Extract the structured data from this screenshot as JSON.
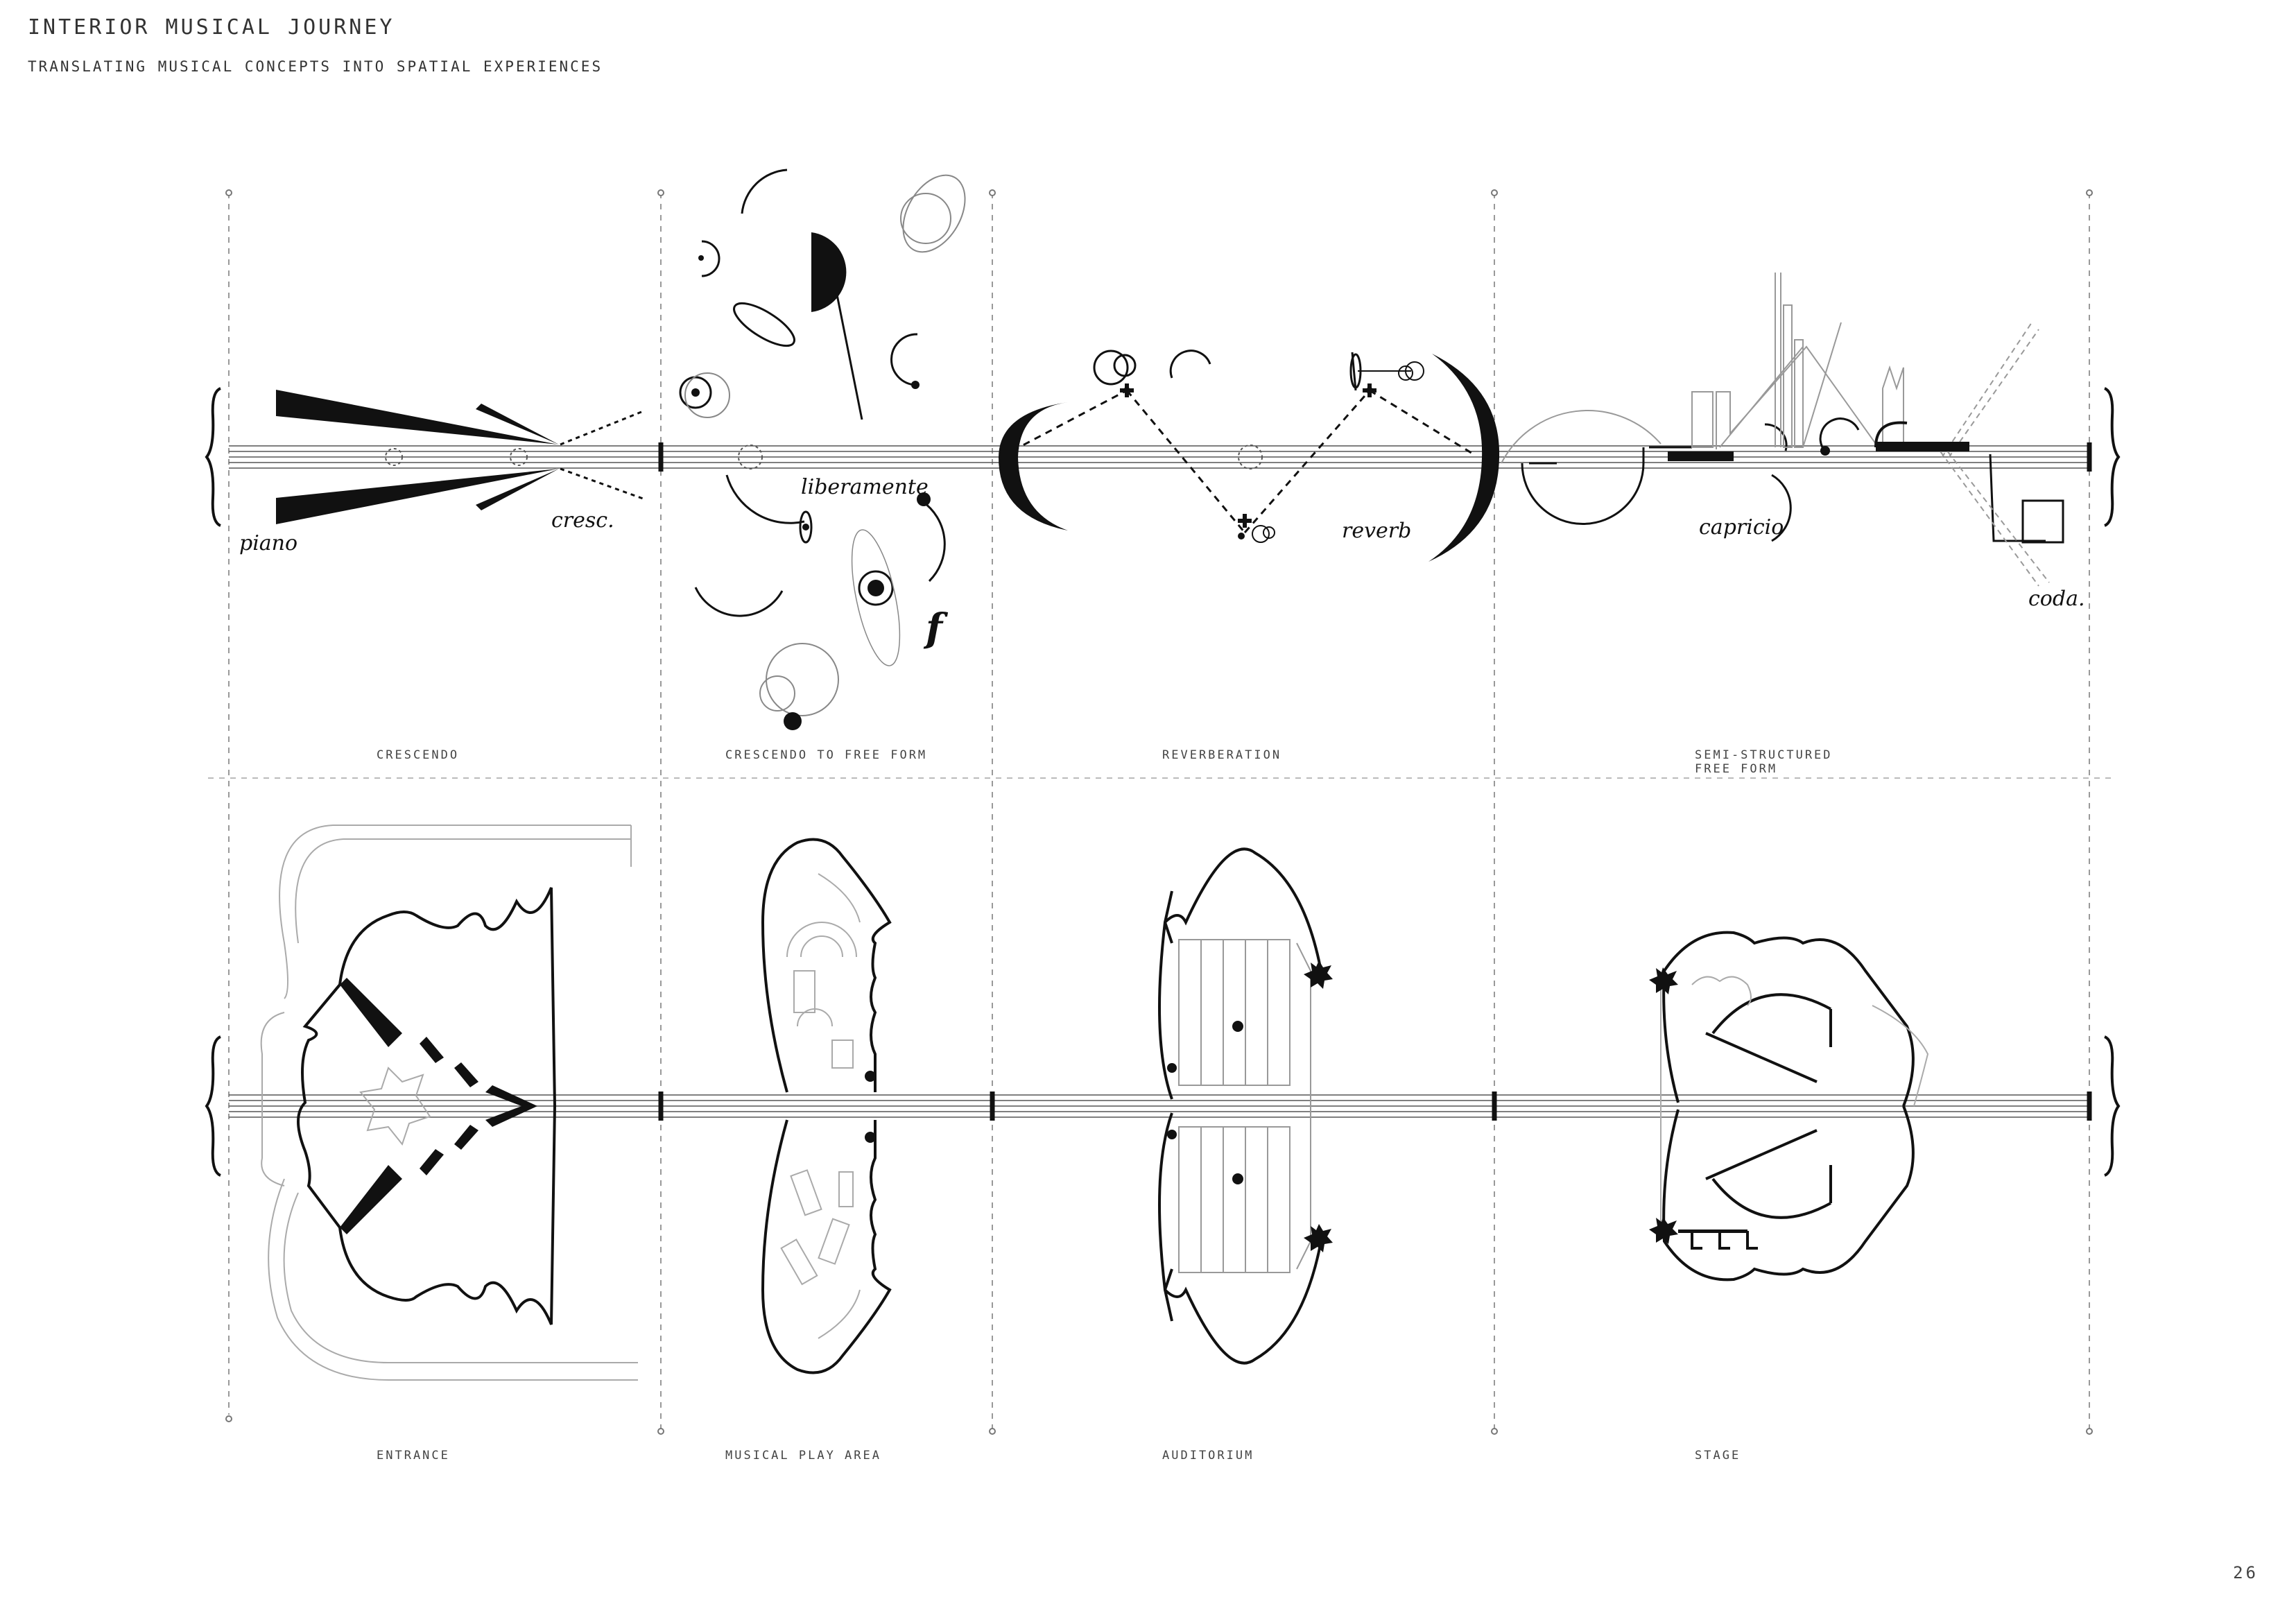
{
  "header": {
    "title": "INTERIOR MUSICAL JOURNEY",
    "subtitle": "TRANSLATING MUSICAL CONCEPTS INTO SPATIAL EXPERIENCES"
  },
  "concept_row": {
    "labels": [
      "CRESCENDO",
      "CRESCENDO TO FREE FORM",
      "REVERBERATION",
      "SEMI-STRUCTURED",
      "FREE FORM"
    ],
    "annotations": {
      "piano": "piano",
      "cresc": "cresc.",
      "liberamente": "liberamente",
      "forte": "f",
      "reverb": "reverb",
      "capricio": "capricio",
      "coda": "coda."
    }
  },
  "plan_row": {
    "labels": [
      "ENTRANCE",
      "MUSICAL PLAY AREA",
      "AUDITORIUM",
      "STAGE"
    ]
  },
  "footer": {
    "page_number": "26"
  },
  "colors": {
    "ink": "#111111",
    "light_line": "#bbbbbb",
    "dash": "#999999"
  }
}
